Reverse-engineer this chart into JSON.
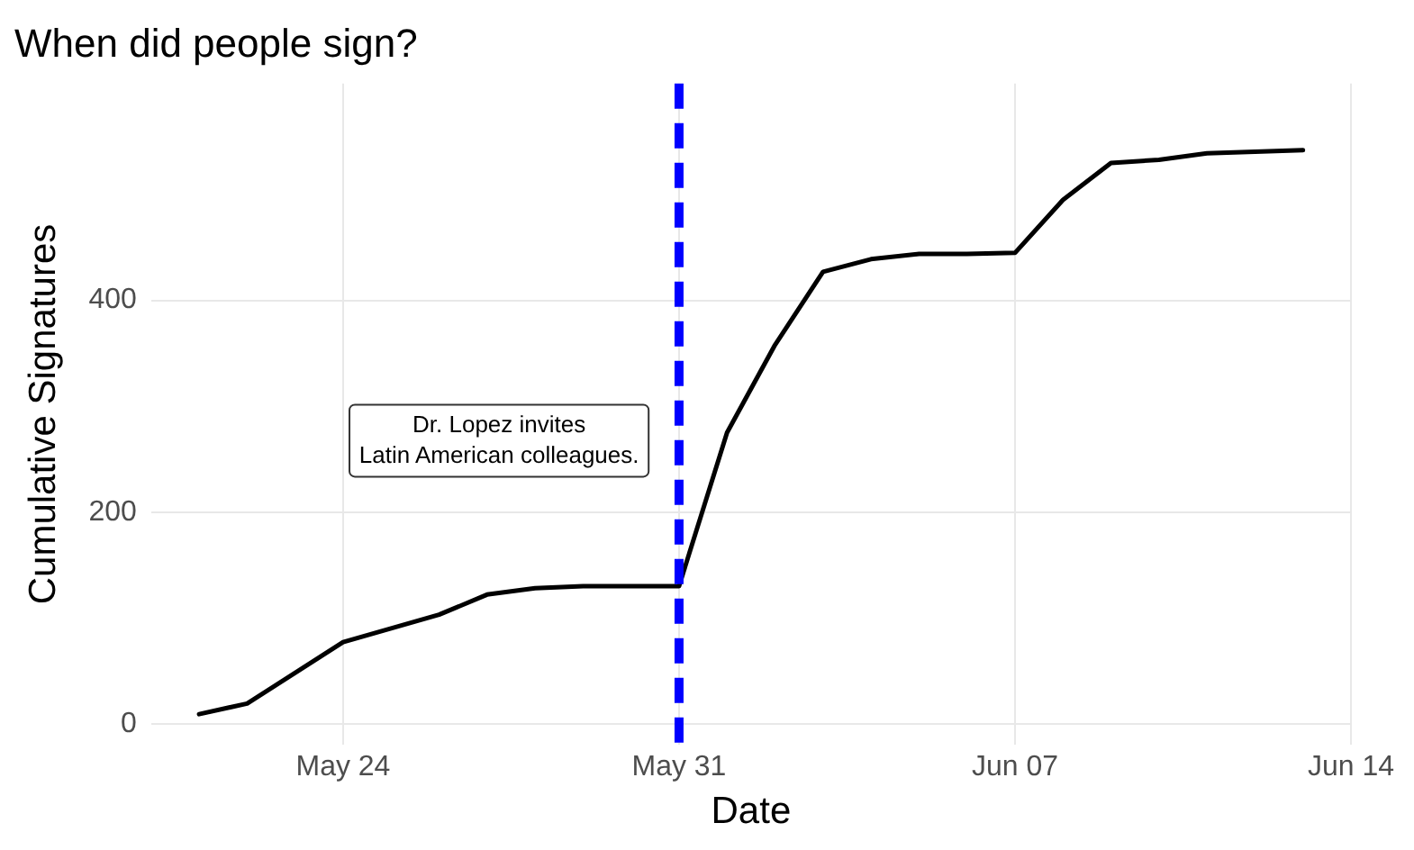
{
  "chart_data": {
    "type": "line",
    "title": "When did people sign?",
    "xlabel": "Date",
    "ylabel": "Cumulative Signatures",
    "x": [
      "--05-21",
      "--05-22",
      "--05-24",
      "--05-26",
      "--05-27",
      "--05-28",
      "--05-29",
      "--05-31",
      "--06-01",
      "--06-02",
      "--06-03",
      "--06-04",
      "--06-05",
      "--06-06",
      "--06-07",
      "--06-08",
      "--06-09",
      "--06-10",
      "--06-11",
      "--06-13"
    ],
    "series": [
      {
        "color": "#000000",
        "values": [
          9,
          19,
          77,
          103,
          122,
          128,
          130,
          130,
          275,
          358,
          427,
          439,
          444,
          444,
          445,
          495,
          530,
          533,
          539,
          542
        ]
      }
    ],
    "xlim": [
      "--05-20",
      "--06-14"
    ],
    "xticks": [
      {
        "value": "--05-24",
        "label": "May 24"
      },
      {
        "value": "--05-31",
        "label": "May 31"
      },
      {
        "value": "--06-07",
        "label": "Jun 07"
      },
      {
        "value": "--06-14",
        "label": "Jun 14"
      }
    ],
    "ylim": [
      -20,
      605
    ],
    "yticks": [
      0,
      200,
      400
    ],
    "grid": true,
    "legend": false,
    "marker": "none",
    "line_style": "solid",
    "ref_lines": [
      {
        "axis": "x",
        "value": "--05-31",
        "color": "#0000ff",
        "line_style": "dashed"
      }
    ],
    "annotations": [
      "Dr. Lopez invites\nLatin American colleagues."
    ]
  }
}
